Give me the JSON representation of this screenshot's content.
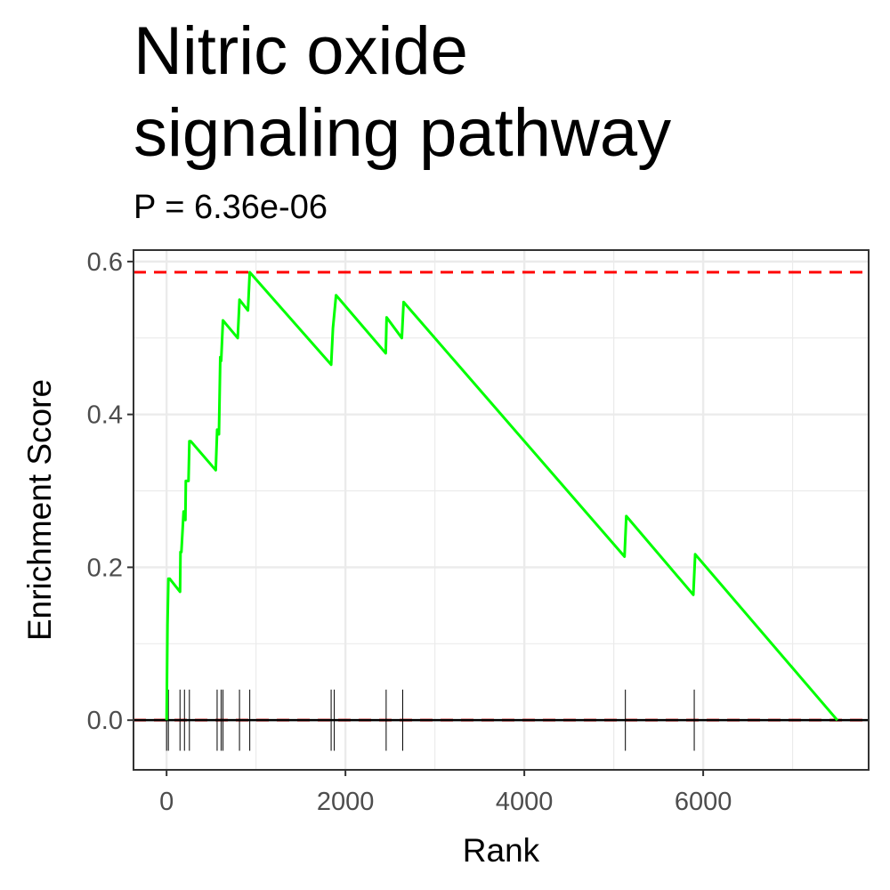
{
  "chart_data": {
    "type": "line",
    "title_lines": [
      "Nitric oxide",
      "signaling pathway"
    ],
    "subtitle": "P = 6.36e-06",
    "xlabel": "Rank",
    "ylabel": "Enrichment Score",
    "xlim": [
      -370,
      7850
    ],
    "ylim": [
      -0.065,
      0.615
    ],
    "x_ticks": [
      0,
      2000,
      4000,
      6000
    ],
    "x_tick_labels": [
      "0",
      "2000",
      "4000",
      "6000"
    ],
    "y_ticks": [
      0.0,
      0.2,
      0.4,
      0.6
    ],
    "y_tick_labels": [
      "0.0",
      "0.2",
      "0.4",
      "0.6"
    ],
    "grid": true,
    "colors": {
      "curve": "#00ff00",
      "reference": "#ff0000",
      "hits": "#000000",
      "grid": "#ebebeb",
      "panel_border": "#333333"
    },
    "max_es": 0.586,
    "series": [
      {
        "x": [
          0,
          10,
          20,
          35,
          150,
          155,
          165,
          190,
          200,
          210,
          215,
          245,
          255,
          270,
          550,
          565,
          585,
          600,
          610,
          630,
          795,
          815,
          910,
          930,
          1840,
          1860,
          1895,
          2450,
          2460,
          2630,
          2650,
          5120,
          5140,
          5890,
          5910,
          7500
        ],
        "y": [
          0.0,
          0.125,
          0.185,
          0.185,
          0.168,
          0.22,
          0.22,
          0.273,
          0.273,
          0.262,
          0.313,
          0.313,
          0.365,
          0.365,
          0.327,
          0.38,
          0.374,
          0.475,
          0.47,
          0.523,
          0.5,
          0.55,
          0.536,
          0.586,
          0.465,
          0.513,
          0.556,
          0.48,
          0.527,
          0.5,
          0.547,
          0.214,
          0.267,
          0.164,
          0.217,
          0.0
        ]
      }
    ],
    "hits": [
      0,
      20,
      150,
      200,
      255,
      565,
      610,
      630,
      815,
      930,
      1840,
      1875,
      2455,
      2640,
      5130,
      5900
    ],
    "hit_range": [
      -0.04,
      0.04
    ],
    "reference_lines": [
      0.586,
      0.0
    ]
  }
}
